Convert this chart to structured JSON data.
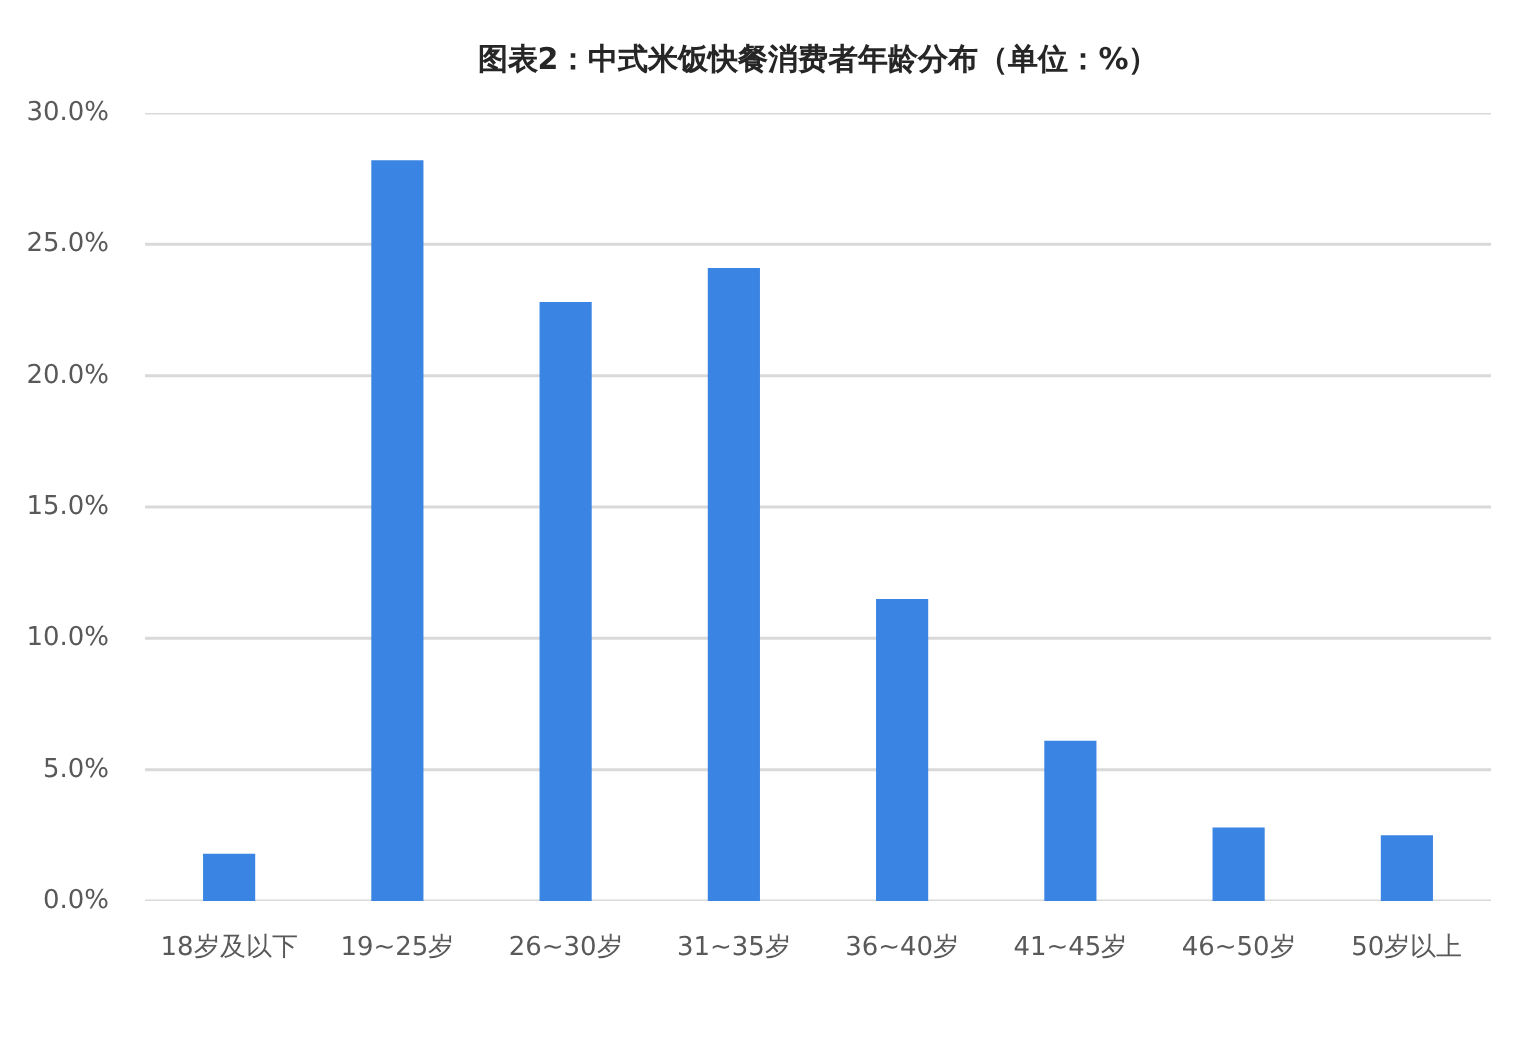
{
  "chart_data": {
    "type": "bar",
    "title": "图表2：中式米饭快餐消费者年龄分布（单位：%）",
    "categories": [
      "18岁及以下",
      "19~25岁",
      "26~30岁",
      "31~35岁",
      "36~40岁",
      "41~45岁",
      "46~50岁",
      "50岁以上"
    ],
    "values": [
      1.8,
      28.2,
      22.8,
      24.1,
      11.5,
      6.1,
      2.8,
      2.5
    ],
    "color": "#3a84e3",
    "ylim": [
      0,
      30
    ],
    "yticks": [
      {
        "value": 0,
        "label": "0.0%"
      },
      {
        "value": 5,
        "label": "5.0%"
      },
      {
        "value": 10,
        "label": "10.0%"
      },
      {
        "value": 15,
        "label": "15.0%"
      },
      {
        "value": 20,
        "label": "20.0%"
      },
      {
        "value": 25,
        "label": "25.0%"
      },
      {
        "value": 30,
        "label": "30.0%"
      }
    ],
    "grid": "y"
  }
}
